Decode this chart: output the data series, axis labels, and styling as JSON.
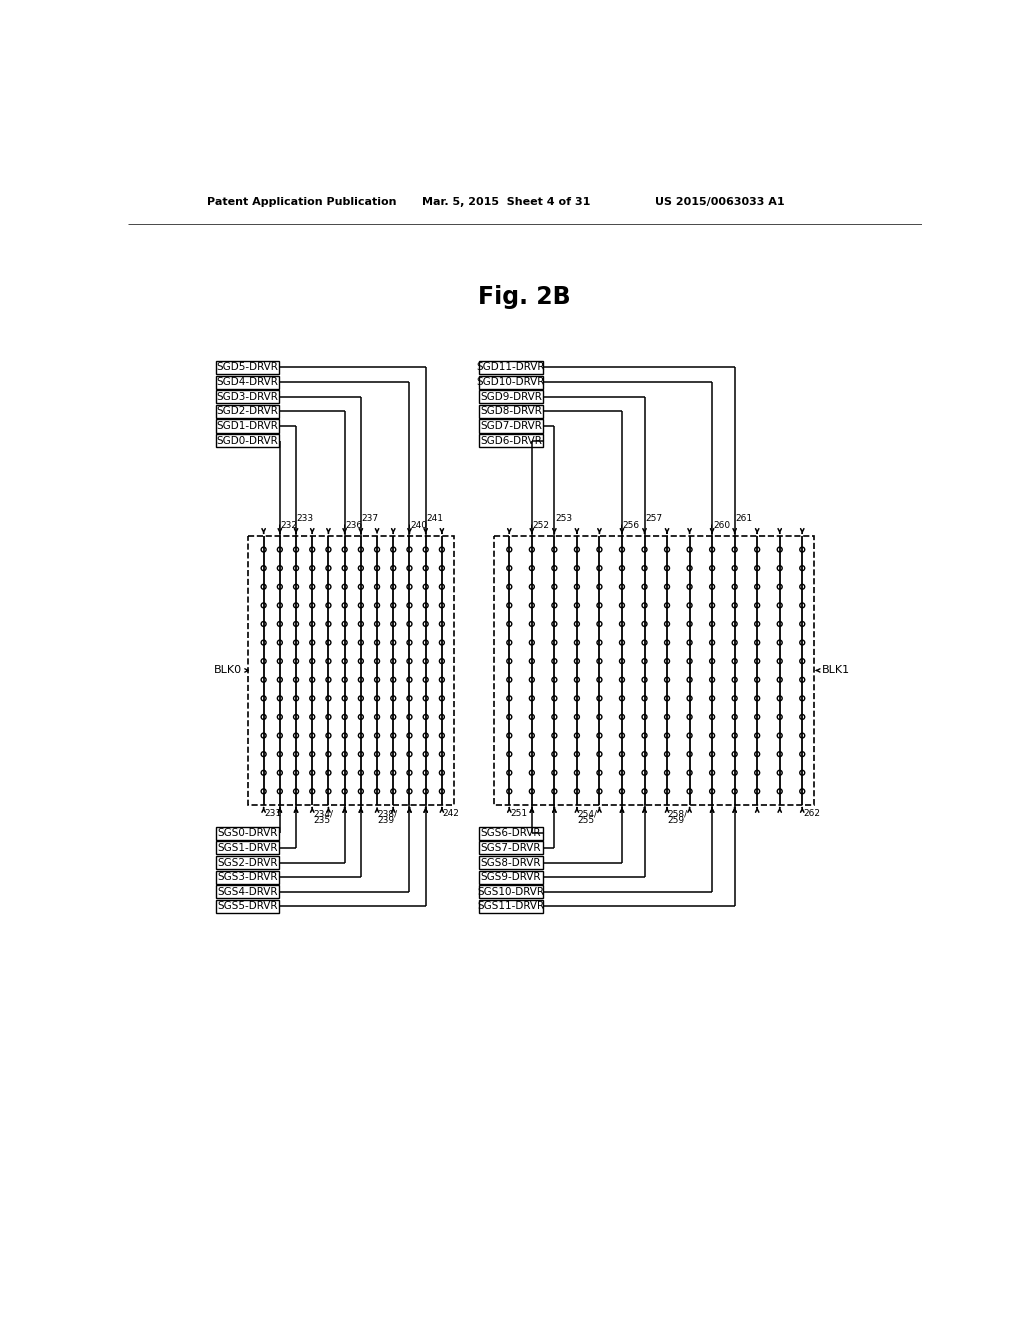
{
  "title": "Fig. 2B",
  "header_left": "Patent Application Publication",
  "header_mid": "Mar. 5, 2015  Sheet 4 of 31",
  "header_right": "US 2015/0063033 A1",
  "bg_color": "#ffffff",
  "sgd_left_labels": [
    "SGD5-DRVR",
    "SGD4-DRVR",
    "SGD3-DRVR",
    "SGD2-DRVR",
    "SGD1-DRVR",
    "SGD0-DRVR"
  ],
  "sgd_right_labels": [
    "SGD11-DRVR",
    "SGD10-DRVR",
    "SGD9-DRVR",
    "SGD8-DRVR",
    "SGD7-DRVR",
    "SGD6-DRVR"
  ],
  "sgs_left_labels": [
    "SGS0-DRVR",
    "SGS1-DRVR",
    "SGS2-DRVR",
    "SGS3-DRVR",
    "SGS4-DRVR",
    "SGS5-DRVR"
  ],
  "sgs_right_labels": [
    "SGS6-DRVR",
    "SGS7-DRVR",
    "SGS8-DRVR",
    "SGS9-DRVR",
    "SGS10-DRVR",
    "SGS11-DRVR"
  ],
  "blk0_label": "BLK0",
  "blk1_label": "BLK1"
}
